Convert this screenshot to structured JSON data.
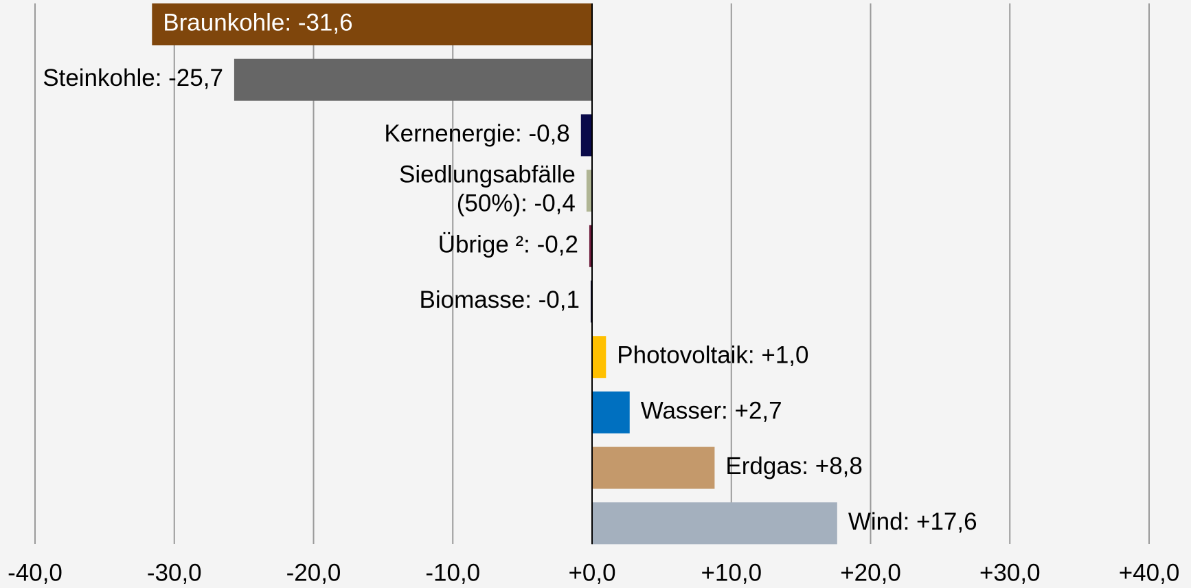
{
  "chart_data": {
    "type": "bar",
    "orientation": "horizontal",
    "values": [
      -31.6,
      -25.7,
      -0.8,
      -0.4,
      -0.2,
      -0.1,
      1.0,
      2.7,
      8.8,
      17.6
    ],
    "value_labels": [
      "Braunkohle: -31,6",
      "Steinkohle: -25,7",
      "Kernenergie: -0,8",
      "Siedlungsabfälle\n(50%): -0,4",
      "Übrige ²: -0,2",
      "Biomasse: -0,1",
      "Photovoltaik: +1,0",
      "Wasser: +2,7",
      "Erdgas: +8,8",
      "Wind: +17,6"
    ],
    "colors": [
      "#7f460c",
      "#666666",
      "#0a0a4a",
      "#b0b594",
      "#6e1c3c",
      "#1a1a40",
      "#ffc000",
      "#0070c0",
      "#c4996b",
      "#a4b0be"
    ],
    "xlim": [
      -40,
      40
    ],
    "xticks": [
      {
        "value": -40,
        "label": "-40,0"
      },
      {
        "value": -30,
        "label": "-30,0"
      },
      {
        "value": -20,
        "label": "-20,0"
      },
      {
        "value": -10,
        "label": "-10,0"
      },
      {
        "value": 0,
        "label": "+0,0"
      },
      {
        "value": 10,
        "label": "+10,0"
      },
      {
        "value": 20,
        "label": "+20,0"
      },
      {
        "value": 30,
        "label": "+30,0"
      },
      {
        "value": 40,
        "label": "+40,0"
      }
    ],
    "grid": true
  }
}
